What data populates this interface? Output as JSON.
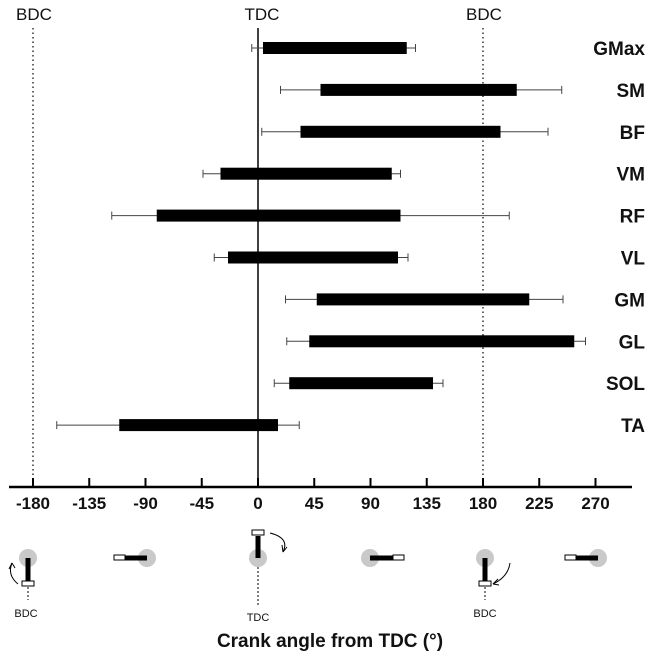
{
  "chart_data": {
    "type": "bar",
    "subtype": "floating-range",
    "title": "",
    "xlabel": "Crank angle from TDC (°)",
    "ylabel": "",
    "xlim": [
      -200,
      290
    ],
    "xticks": [
      -180,
      -135,
      -90,
      -45,
      0,
      45,
      90,
      135,
      180,
      225,
      270
    ],
    "reference_lines": [
      {
        "label": "BDC",
        "x": -180,
        "style": "dotted"
      },
      {
        "label": "TDC",
        "x": 0,
        "style": "solid"
      },
      {
        "label": "BDC",
        "x": 180,
        "style": "dotted"
      }
    ],
    "muscles": [
      {
        "name": "GMax",
        "onset": 4,
        "offset": 119,
        "onset_err": [
          -5,
          13
        ],
        "offset_err": [
          109,
          126
        ]
      },
      {
        "name": "SM",
        "onset": 50,
        "offset": 207,
        "onset_err": [
          18,
          82
        ],
        "offset_err": [
          170,
          243
        ]
      },
      {
        "name": "BF",
        "onset": 34,
        "offset": 194,
        "onset_err": [
          3,
          65
        ],
        "offset_err": [
          156,
          232
        ]
      },
      {
        "name": "VM",
        "onset": -30,
        "offset": 107,
        "onset_err": [
          -44,
          -16
        ],
        "offset_err": [
          100,
          114
        ]
      },
      {
        "name": "RF",
        "onset": -81,
        "offset": 114,
        "onset_err": [
          -117,
          -45
        ],
        "offset_err": [
          28,
          201
        ]
      },
      {
        "name": "VL",
        "onset": -24,
        "offset": 112,
        "onset_err": [
          -35,
          -13
        ],
        "offset_err": [
          104,
          120
        ]
      },
      {
        "name": "GM",
        "onset": 47,
        "offset": 217,
        "onset_err": [
          22,
          72
        ],
        "offset_err": [
          189,
          244
        ]
      },
      {
        "name": "GL",
        "onset": 41,
        "offset": 253,
        "onset_err": [
          23,
          59
        ],
        "offset_err": [
          244,
          262
        ]
      },
      {
        "name": "SOL",
        "onset": 25,
        "offset": 140,
        "onset_err": [
          13,
          37
        ],
        "offset_err": [
          132,
          148
        ]
      },
      {
        "name": "TA",
        "onset": -111,
        "offset": 16,
        "onset_err": [
          -161,
          -61
        ],
        "offset_err": [
          -1,
          33
        ]
      }
    ]
  },
  "crank_labels": [
    "BDC",
    "TDC",
    "BDC"
  ]
}
